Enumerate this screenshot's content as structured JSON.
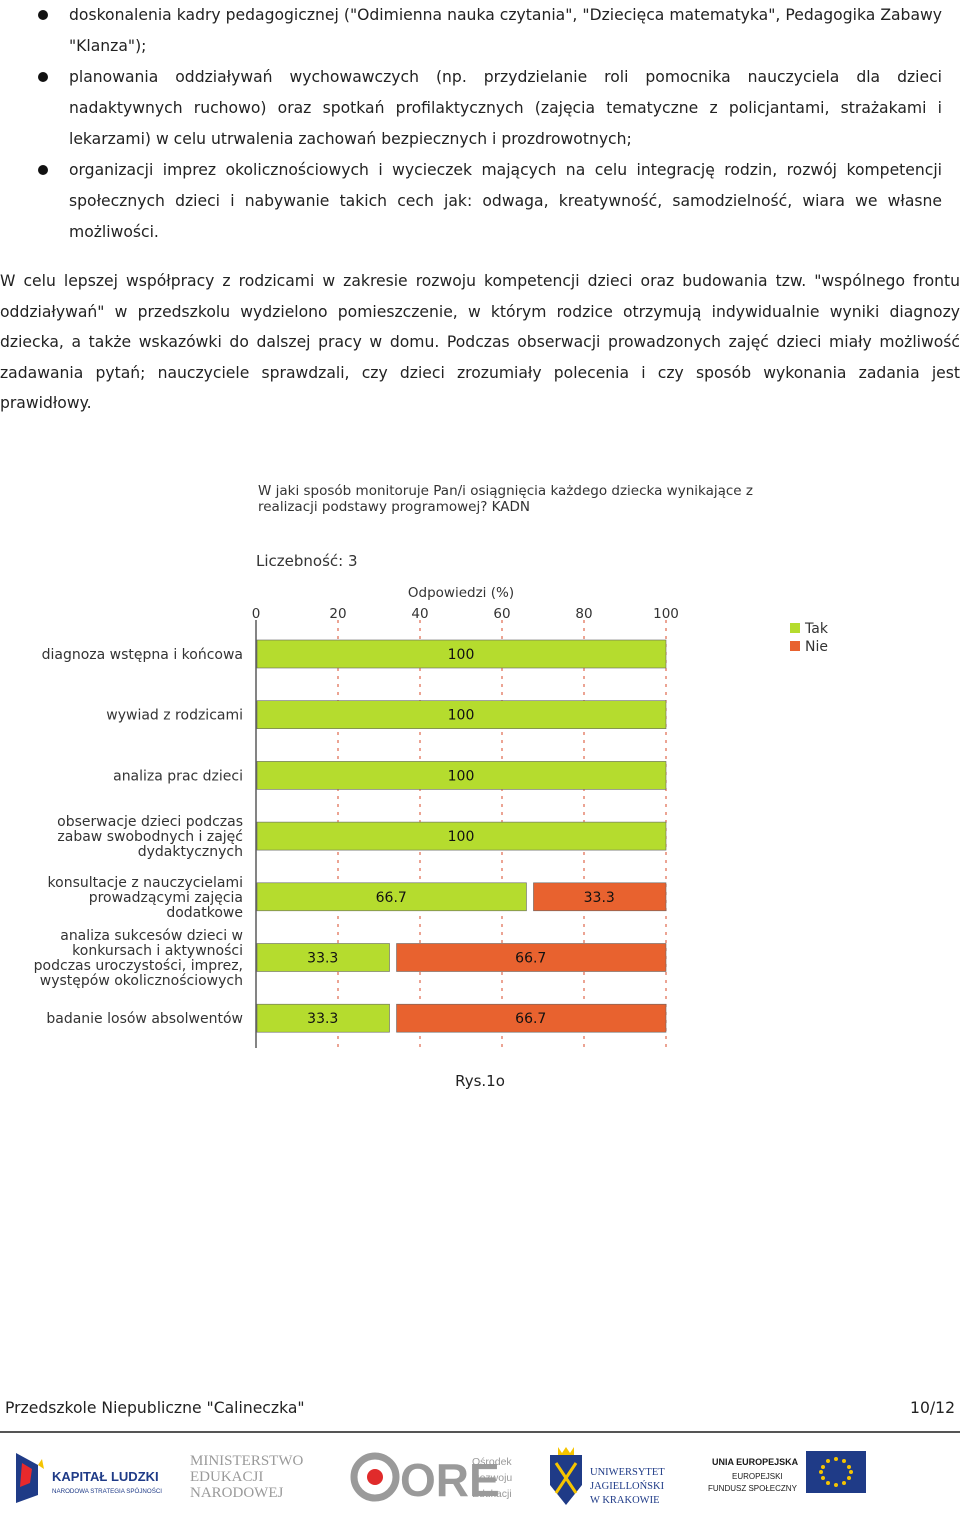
{
  "bullets": [
    "doskonalenia kadry pedagogicznej (\"Odimienna nauka czytania\", \"Dziecięca matematyka\", Pedagogika Zabawy \"Klanza\");",
    "planowania oddziaływań wychowawczych (np. przydzielanie roli pomocnika nauczyciela dla dzieci nadaktywnych ruchowo) oraz spotkań profilaktycznych (zajęcia tematyczne z policjantami, strażakami i lekarzami) w celu utrwalenia zachowań bezpiecznych i prozdrowotnych;",
    "organizacji imprez okolicznościowych i wycieczek mających na celu integrację rodzin, rozwój kompetencji społecznych dzieci i nabywanie takich cech jak: odwaga, kreatywność, samodzielność, wiara we własne możliwości."
  ],
  "paragraph": "W celu lepszej współpracy z rodzicami w zakresie rozwoju kompetencji dzieci oraz budowania tzw. \"wspólnego frontu oddziaływań\" w przedszkolu wydzielono pomieszczenie, w którym rodzice otrzymują indywidualnie wyniki diagnozy dziecka, a także wskazówki do dalszej pracy w domu. Podczas obserwacji prowadzonych zajęć dzieci miały możliwość zadawania pytań; nauczyciele sprawdzali, czy dzieci zrozumiały polecenia i czy sposób wykonania zadania jest prawidłowy.",
  "chart_data": {
    "type": "bar",
    "orientation": "horizontal",
    "stacked": true,
    "title_lines": [
      "W jaki sposób monitoruje  Pan/i osiągnięcia każdego dziecka wynikające z",
      "realizacji podstawy programowej? KADN"
    ],
    "count_label": "Liczebność: 3",
    "xlabel": "Odpowiedzi (%)",
    "xlim": [
      0,
      100
    ],
    "xticks": [
      0,
      20,
      40,
      60,
      80,
      100
    ],
    "grid": true,
    "legend_position": "top-right",
    "categories": [
      [
        "diagnoza wstępna i końcowa"
      ],
      [
        "wywiad z rodzicami"
      ],
      [
        "analiza prac dzieci"
      ],
      [
        "obserwacje dzieci podczas",
        "zabaw swobodnych i zajęć",
        "dydaktycznych"
      ],
      [
        "konsultacje z nauczycielami",
        "prowadzącymi zajęcia",
        "dodatkowe"
      ],
      [
        "analiza sukcesów dzieci w",
        "konkursach i aktywności",
        "podczas uroczystości, imprez,",
        "występów okolicznościowych"
      ],
      [
        "badanie losów absolwentów"
      ]
    ],
    "series": [
      {
        "name": "Tak",
        "color": "#b5dc2e",
        "values": [
          100,
          100,
          100,
          100,
          66.7,
          33.3,
          33.3
        ],
        "labels": [
          "100",
          "100",
          "100",
          "100",
          "66.7",
          "33.3",
          "33.3"
        ]
      },
      {
        "name": "Nie",
        "color": "#e8622f",
        "values": [
          0,
          0,
          0,
          0,
          33.3,
          66.7,
          66.7
        ],
        "labels": [
          "",
          "",
          "",
          "",
          "33.3",
          "66.7",
          "66.7"
        ]
      }
    ]
  },
  "caption": "Rys.1o",
  "footer": {
    "left": "Przedszkole Niepubliczne \"Calineczka\"",
    "right": "10/12"
  },
  "logos": {
    "kapital": [
      "KAPITAŁ LUDZKI",
      "NARODOWA STRATEGIA SPÓJNOŚCI"
    ],
    "men": [
      "MINISTERSTWO",
      "EDUKACJI",
      "NARODOWEJ"
    ],
    "ore_big": "ORE",
    "ore_small": [
      "Ośrodek",
      "Rozwoju",
      "Edukacji"
    ],
    "uj": [
      "UNIWERSYTET",
      "JAGIELLOŃSKI",
      "W KRAKOWIE"
    ],
    "ue": [
      "UNIA EUROPEJSKA",
      "EUROPEJSKI",
      "FUNDUSZ SPOŁECZNY"
    ]
  }
}
